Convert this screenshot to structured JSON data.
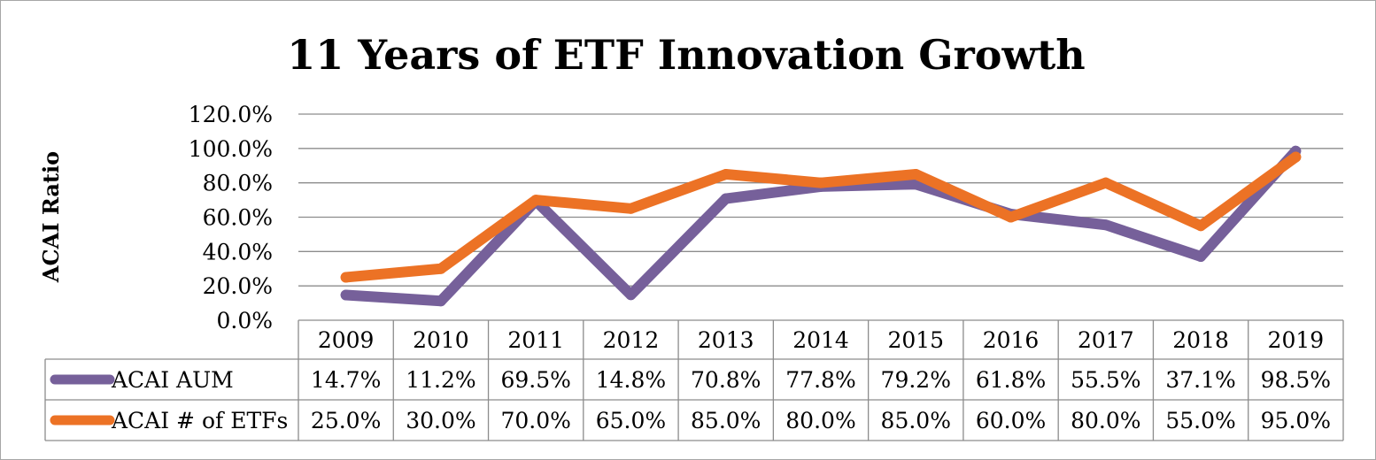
{
  "chart_data": {
    "type": "line",
    "title": "11 Years of ETF Innovation Growth",
    "ylabel": "ACAI Ratio",
    "xlabel": "",
    "categories": [
      "2009",
      "2010",
      "2011",
      "2012",
      "2013",
      "2014",
      "2015",
      "2016",
      "2017",
      "2018",
      "2019"
    ],
    "yticks": [
      "0.0%",
      "20.0%",
      "40.0%",
      "60.0%",
      "80.0%",
      "100.0%",
      "120.0%"
    ],
    "ylim": [
      0,
      120
    ],
    "grid": true,
    "legend_placement": "data-table",
    "series": [
      {
        "name": "ACAI AUM",
        "color": "#76609a",
        "values": [
          14.7,
          11.2,
          69.5,
          14.8,
          70.8,
          77.8,
          79.2,
          61.8,
          55.5,
          37.1,
          98.5
        ],
        "labels": [
          "14.7%",
          "11.2%",
          "69.5%",
          "14.8%",
          "70.8%",
          "77.8%",
          "79.2%",
          "61.8%",
          "55.5%",
          "37.1%",
          "98.5%"
        ]
      },
      {
        "name": "ACAI # of ETFs",
        "color": "#ec7225",
        "values": [
          25.0,
          30.0,
          70.0,
          65.0,
          85.0,
          80.0,
          85.0,
          60.0,
          80.0,
          55.0,
          95.0
        ],
        "labels": [
          "25.0%",
          "30.0%",
          "70.0%",
          "65.0%",
          "85.0%",
          "80.0%",
          "85.0%",
          "60.0%",
          "80.0%",
          "55.0%",
          "95.0%"
        ]
      }
    ]
  }
}
